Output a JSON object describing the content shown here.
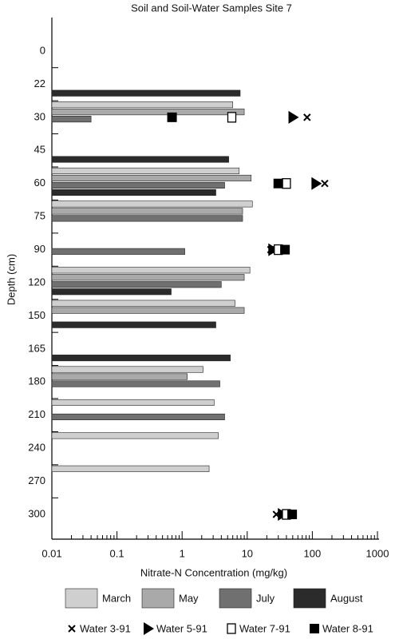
{
  "chart_data": {
    "type": "bar",
    "orientation": "horizontal",
    "title": "Soil and Soil-Water Samples Site 7",
    "xlabel": "Nitrate-N Concentration (mg/kg)",
    "ylabel": "Depth (cm)",
    "xscale": "log",
    "xlim": [
      0.01,
      1000
    ],
    "xticks": [
      0.01,
      0.1,
      1,
      10,
      100,
      1000
    ],
    "categories": [
      "0",
      "22",
      "30",
      "45",
      "60",
      "75",
      "90",
      "120",
      "150",
      "165",
      "180",
      "210",
      "240",
      "270",
      "300"
    ],
    "series": [
      {
        "name": "March",
        "color": "#cfcfcf",
        "values": [
          null,
          null,
          6,
          null,
          7.5,
          12,
          null,
          11,
          6.5,
          null,
          2.1,
          3.1,
          3.6,
          2.6,
          null
        ]
      },
      {
        "name": "May",
        "color": "#a9a9a9",
        "values": [
          null,
          null,
          9,
          null,
          11.5,
          8.5,
          null,
          9,
          9,
          null,
          1.2,
          null,
          null,
          null,
          null
        ]
      },
      {
        "name": "July",
        "color": "#707070",
        "values": [
          null,
          null,
          0.04,
          null,
          4.5,
          8.5,
          1.1,
          4,
          null,
          null,
          3.8,
          4.5,
          null,
          null,
          null
        ]
      },
      {
        "name": "August",
        "color": "#2b2b2b",
        "values": [
          null,
          7.8,
          null,
          5.2,
          3.3,
          null,
          null,
          0.68,
          3.3,
          5.5,
          null,
          null,
          null,
          null,
          null
        ]
      }
    ],
    "water_series": [
      {
        "name": "Water 3-91",
        "marker": "x",
        "color": "#000000",
        "values": [
          null,
          null,
          83,
          null,
          155,
          null,
          23,
          null,
          null,
          null,
          null,
          null,
          null,
          null,
          28
        ]
      },
      {
        "name": "Water 5-91",
        "marker": "triangle",
        "color": "#000000",
        "values": [
          null,
          null,
          51,
          null,
          115,
          null,
          25,
          null,
          null,
          null,
          null,
          null,
          null,
          null,
          35
        ]
      },
      {
        "name": "Water 7-91",
        "marker": "open-square",
        "color": "#000000",
        "values": [
          null,
          null,
          5.8,
          null,
          40,
          null,
          30,
          null,
          null,
          null,
          null,
          null,
          null,
          null,
          40
        ]
      },
      {
        "name": "Water 8-91",
        "marker": "square",
        "color": "#000000",
        "values": [
          null,
          null,
          0.7,
          null,
          30,
          null,
          38,
          null,
          null,
          null,
          null,
          null,
          null,
          null,
          49
        ]
      }
    ]
  }
}
